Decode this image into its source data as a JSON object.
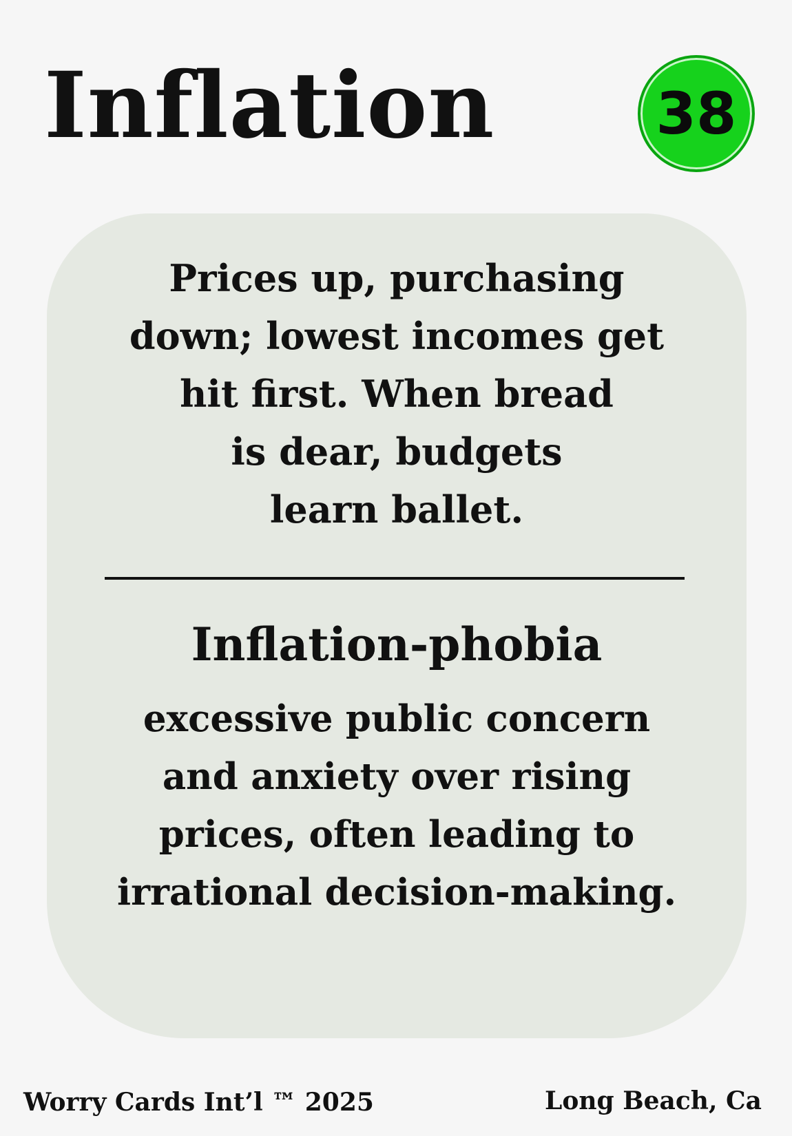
{
  "card": {
    "title": "Inflation",
    "number": "38",
    "phrase_lines": [
      "Prices up, purchasing",
      "down; lowest incomes get",
      "hit first. When bread",
      "is dear, budgets",
      "learn ballet."
    ],
    "phobia_name": "Inflation-phobia",
    "definition_lines": [
      "excessive public concern",
      "and anxiety over rising",
      "prices, often leading to",
      "irrational decision-making."
    ]
  },
  "footer": {
    "left": "Worry Cards Int’l ™ 2025",
    "right": "Long Beach, Ca"
  },
  "colors": {
    "badge": "#16d21c",
    "panel": "#e5e9e2",
    "background": "#f6f6f6"
  }
}
